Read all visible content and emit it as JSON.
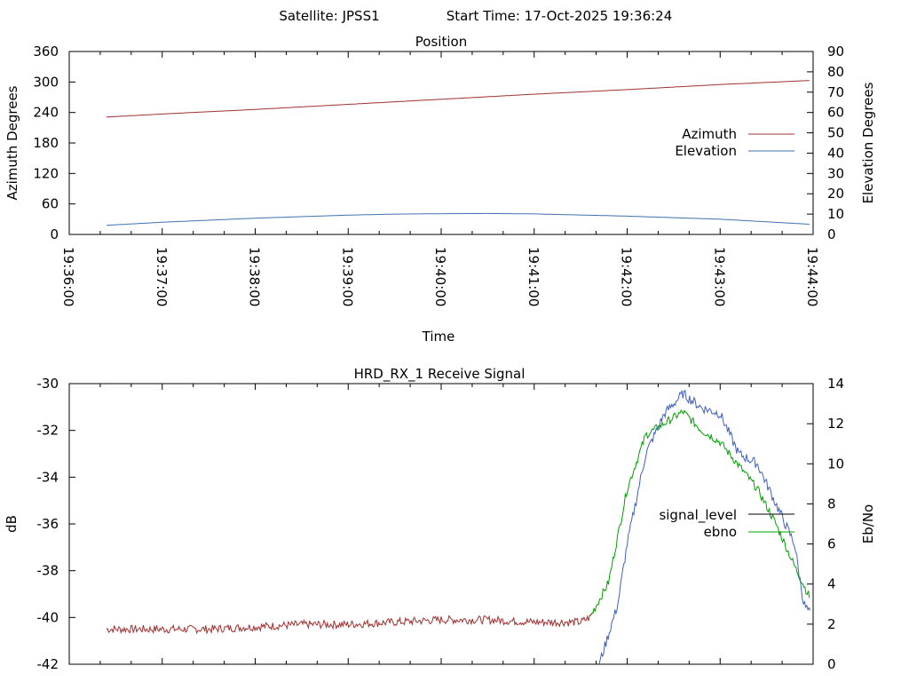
{
  "header": {
    "satellite": "Satellite: JPSS1",
    "start_time": "Start Time: 17-Oct-2025 19:36:24"
  },
  "colors": {
    "azimuth": "#a03030",
    "elevation": "#4070b0",
    "signal_level": "#000000",
    "ebno_green": "#00a000",
    "ebno_blue": "#4060c0",
    "signal_trace": "#a03030"
  },
  "chart_data": [
    {
      "type": "line",
      "title": "Position",
      "xlabel": "Time",
      "ylabel": "Azimuth Degrees",
      "y2label": "Elevation Degrees",
      "x_ticks": [
        "19:36:00",
        "19:37:00",
        "19:38:00",
        "19:39:00",
        "19:40:00",
        "19:41:00",
        "19:42:00",
        "19:43:00",
        "19:44:00"
      ],
      "xlim_minutes": [
        0,
        8
      ],
      "ylim": [
        0,
        360
      ],
      "y_ticks": [
        "0",
        "60",
        "120",
        "180",
        "240",
        "300",
        "360"
      ],
      "y2lim": [
        0,
        90
      ],
      "y2_ticks": [
        "0",
        "10",
        "20",
        "30",
        "40",
        "50",
        "60",
        "70",
        "80",
        "90"
      ],
      "grid": false,
      "legend_position": "right",
      "series": [
        {
          "name": "Azimuth",
          "axis": "left",
          "x_minutes": [
            0.4,
            1.0,
            2.0,
            3.0,
            4.0,
            5.0,
            6.0,
            7.0,
            7.97
          ],
          "values": [
            231,
            237,
            246,
            256,
            266,
            276,
            285,
            295,
            303
          ]
        },
        {
          "name": "Elevation",
          "axis": "right",
          "x_minutes": [
            0.4,
            1.0,
            2.0,
            3.0,
            3.5,
            4.0,
            4.5,
            5.0,
            6.0,
            7.0,
            7.97
          ],
          "values": [
            4.5,
            6,
            8,
            9.5,
            10,
            10.2,
            10.3,
            10.1,
            9,
            7.5,
            5
          ]
        }
      ]
    },
    {
      "type": "line",
      "title": "HRD_RX_1 Receive Signal",
      "ylabel": "dB",
      "y2label": "Eb/No",
      "ylim": [
        -42,
        -30
      ],
      "y_ticks": [
        "-42",
        "-40",
        "-38",
        "-36",
        "-34",
        "-32",
        "-30"
      ],
      "y2lim": [
        0,
        14
      ],
      "y2_ticks": [
        "0",
        "2",
        "4",
        "6",
        "8",
        "10",
        "12",
        "14"
      ],
      "xlim_minutes": [
        0,
        8
      ],
      "grid": false,
      "legend_position": "right",
      "series": [
        {
          "name": "signal_level",
          "axis": "left",
          "x_minutes": [
            0.4,
            1.0,
            1.5,
            2.0,
            2.5,
            3.0,
            3.5,
            4.0,
            4.5,
            5.0,
            5.5,
            5.6,
            5.8,
            6.0,
            6.2,
            6.4,
            6.6,
            6.8,
            7.0,
            7.2,
            7.4,
            7.6,
            7.8,
            7.97
          ],
          "values": [
            -40.5,
            -40.5,
            -40.5,
            -40.4,
            -40.3,
            -40.3,
            -40.2,
            -40.1,
            -40.1,
            -40.2,
            -40.2,
            -40.0,
            -38.5,
            -34.5,
            -32.2,
            -31.7,
            -31.2,
            -32.0,
            -32.5,
            -33.5,
            -34.5,
            -36.0,
            -37.8,
            -39.2
          ]
        },
        {
          "name": "ebno",
          "axis": "right",
          "x_minutes": [
            5.7,
            5.9,
            6.0,
            6.2,
            6.4,
            6.6,
            6.8,
            7.0,
            7.2,
            7.4,
            7.6,
            7.8,
            7.9,
            7.97
          ],
          "values": [
            0,
            3,
            6,
            10.5,
            12.5,
            13.5,
            12.8,
            12.5,
            10.5,
            10,
            8,
            6,
            3,
            2.5
          ]
        }
      ]
    }
  ]
}
